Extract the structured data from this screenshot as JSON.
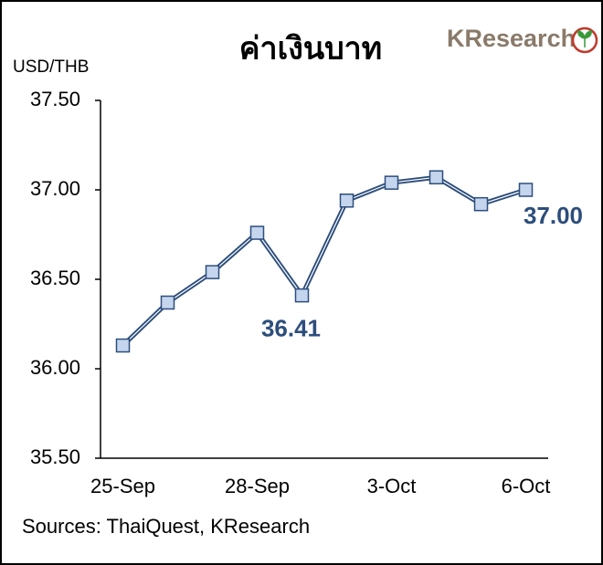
{
  "chart_data": {
    "type": "line",
    "title": "ค่าเงินบาท",
    "logo": "KResearch",
    "y_label": "USD/THB",
    "source": "Sources: ThaiQuest, KResearch",
    "categories": [
      "25-Sep",
      null,
      null,
      "28-Sep",
      null,
      null,
      "3-Oct",
      null,
      null,
      "6-Oct"
    ],
    "series": [
      {
        "name": "USD/THB",
        "color": "#2d4e7c",
        "marker_color": "#c5d5ee",
        "values": [
          36.13,
          36.37,
          36.54,
          36.76,
          36.41,
          36.94,
          37.04,
          37.07,
          36.92,
          37.0
        ],
        "value_labels": [
          null,
          null,
          null,
          null,
          "36.41",
          null,
          null,
          null,
          null,
          "37.00"
        ]
      }
    ],
    "ylim": [
      35.5,
      37.5
    ],
    "yticks": [
      {
        "value": 35.5,
        "label": "35.50"
      },
      {
        "value": 36,
        "label": "36.00"
      },
      {
        "value": 36.5,
        "label": "36.50"
      },
      {
        "value": 37,
        "label": "37.00"
      },
      {
        "value": 37.5,
        "label": "37.50"
      }
    ],
    "grid": false
  }
}
